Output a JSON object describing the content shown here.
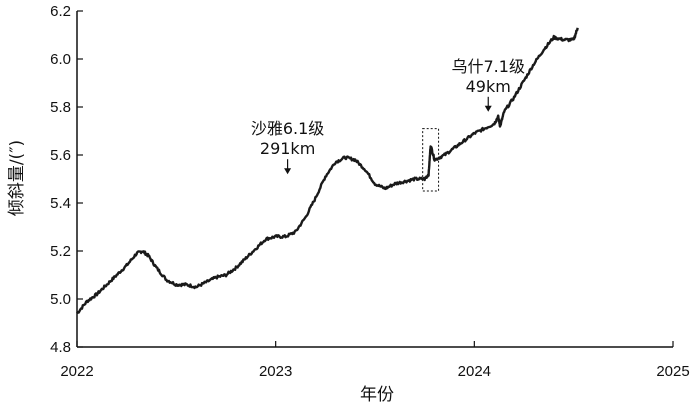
{
  "chart_data": {
    "type": "line",
    "title": "",
    "xlabel": "年份",
    "ylabel": "倾斜量/(″)",
    "xlim": [
      2022,
      2025
    ],
    "ylim": [
      4.8,
      6.2
    ],
    "x_ticks": [
      "2022",
      "2023",
      "2024",
      "2025"
    ],
    "y_ticks": [
      "4.8",
      "5.0",
      "5.2",
      "5.4",
      "5.6",
      "5.8",
      "6.0",
      "6.2"
    ],
    "grid": false,
    "legend": "none",
    "line_color": "#1a1a1a",
    "series": [
      {
        "x": [
          2022.0,
          2022.05,
          2022.1,
          2022.15,
          2022.2,
          2022.25,
          2022.3,
          2022.33,
          2022.36,
          2022.4,
          2022.45,
          2022.5,
          2022.55,
          2022.6,
          2022.65,
          2022.7,
          2022.75,
          2022.8,
          2022.85,
          2022.9,
          2022.95,
          2023.0,
          2023.05,
          2023.1,
          2023.15,
          2023.2,
          2023.25,
          2023.3,
          2023.35,
          2023.4,
          2023.45,
          2023.5,
          2023.55,
          2023.6,
          2023.65,
          2023.7,
          2023.75,
          2023.77,
          2023.78,
          2023.8,
          2023.85,
          2023.9,
          2023.95,
          2024.0,
          2024.05,
          2024.1,
          2024.12,
          2024.13,
          2024.15,
          2024.2,
          2024.25,
          2024.3,
          2024.35,
          2024.4,
          2024.45,
          2024.5,
          2024.52
        ],
        "y": [
          4.94,
          4.99,
          5.02,
          5.06,
          5.1,
          5.14,
          5.19,
          5.2,
          5.18,
          5.13,
          5.08,
          5.06,
          5.06,
          5.05,
          5.07,
          5.09,
          5.1,
          5.13,
          5.17,
          5.21,
          5.25,
          5.26,
          5.26,
          5.28,
          5.34,
          5.42,
          5.51,
          5.57,
          5.59,
          5.58,
          5.54,
          5.48,
          5.46,
          5.48,
          5.49,
          5.5,
          5.5,
          5.52,
          5.64,
          5.58,
          5.6,
          5.63,
          5.66,
          5.69,
          5.71,
          5.73,
          5.76,
          5.72,
          5.78,
          5.84,
          5.91,
          5.98,
          6.04,
          6.09,
          6.08,
          6.08,
          6.13
        ]
      }
    ],
    "annotations": [
      {
        "line1": "沙雅6.1级",
        "line2": "291km",
        "x": 2023.06,
        "y": 5.52
      },
      {
        "line1": "乌什7.1级",
        "line2": "49km",
        "x": 2024.07,
        "y": 5.78
      }
    ],
    "highlight_box": {
      "x_range": [
        2023.74,
        2023.82
      ],
      "y_range": [
        5.45,
        5.71
      ],
      "style": "dotted"
    }
  }
}
